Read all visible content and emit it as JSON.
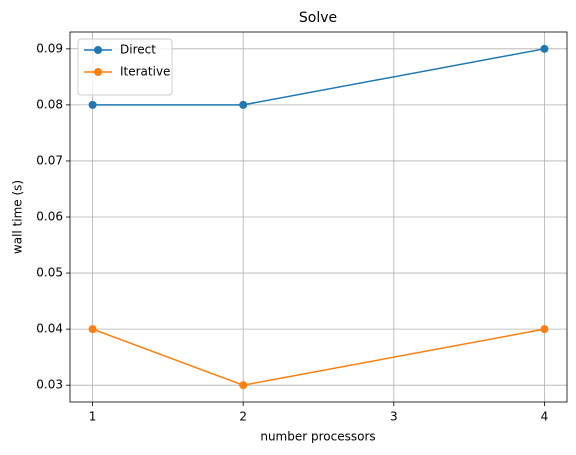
{
  "chart_data": {
    "type": "line",
    "title": "Solve",
    "x_label": "number processors",
    "y_label": "wall time (s)",
    "x": [
      1,
      2,
      4
    ],
    "series": [
      {
        "name": "Direct",
        "color": "#1f77b4",
        "values": [
          0.08,
          0.08,
          0.09
        ]
      },
      {
        "name": "Iterative",
        "color": "#ff7f0e",
        "values": [
          0.04,
          0.03,
          0.04
        ]
      }
    ],
    "xlim": [
      0.85,
      4.15
    ],
    "xticks": [
      1,
      2,
      3,
      4
    ],
    "ylim": [
      0.027,
      0.093
    ],
    "yticks": [
      0.03,
      0.04,
      0.05,
      0.06,
      0.07,
      0.08,
      0.09
    ],
    "grid": true,
    "legend": "upper left"
  }
}
